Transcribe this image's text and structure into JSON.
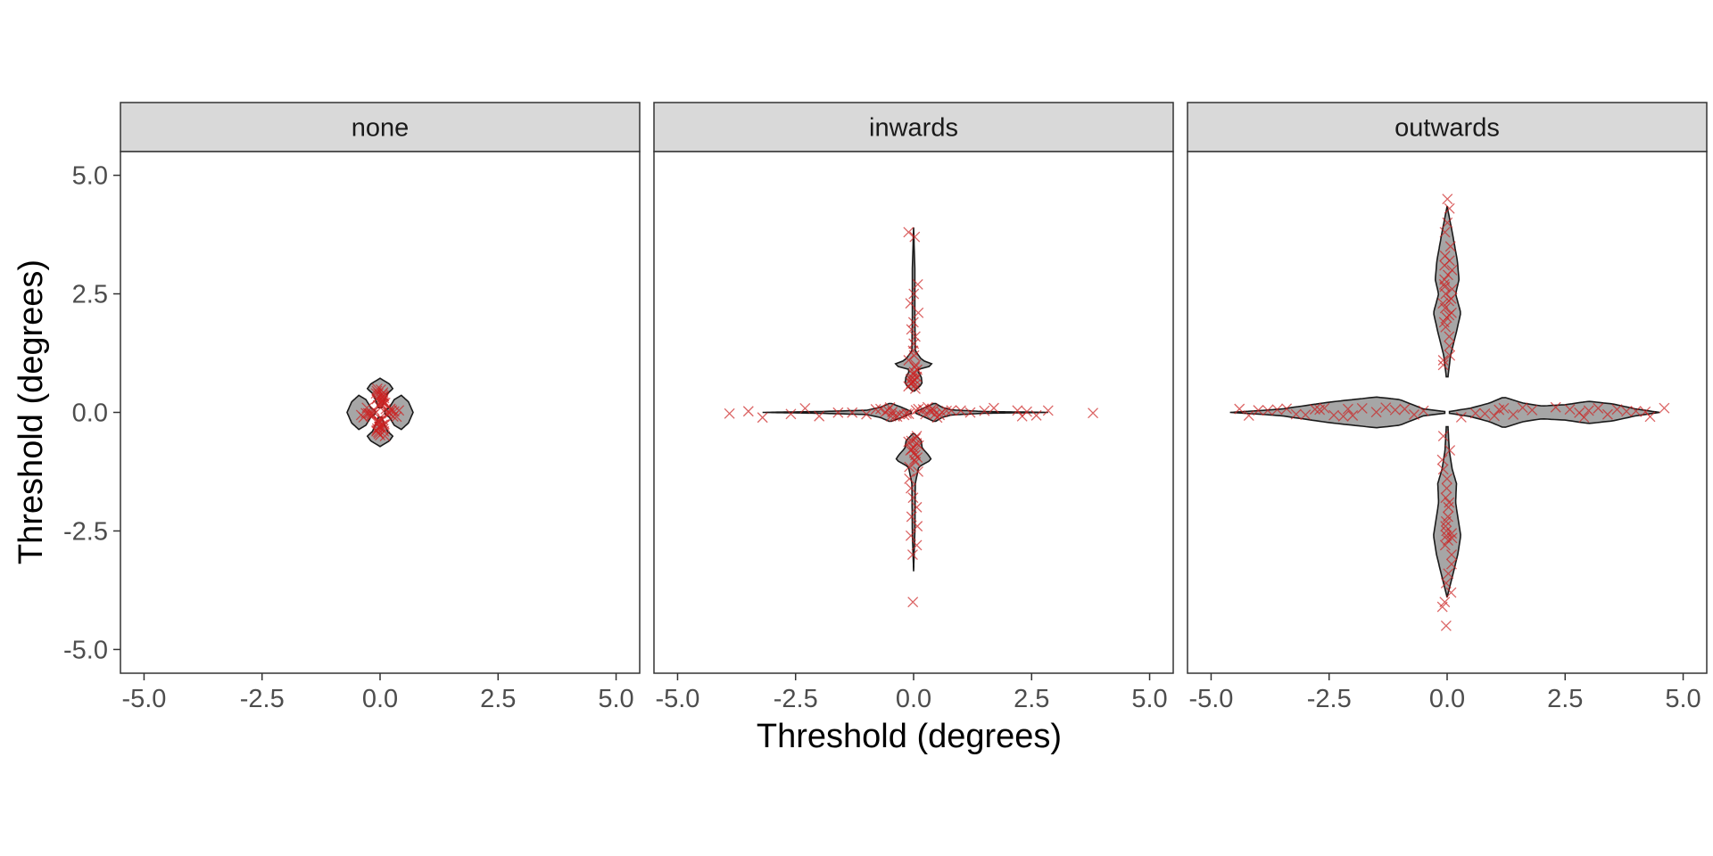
{
  "chart_data": {
    "type": "violin",
    "xlabel": "Threshold (degrees)",
    "ylabel": "Threshold (degrees)",
    "xlim": [
      -5.5,
      5.5
    ],
    "ylim": [
      -5.5,
      5.5
    ],
    "x_ticks": [
      -5.0,
      -2.5,
      0.0,
      2.5,
      5.0
    ],
    "y_ticks": [
      -5.0,
      -2.5,
      0.0,
      2.5,
      5.0
    ],
    "x_tick_labels": [
      "-5.0",
      "-2.5",
      "0.0",
      "2.5",
      "5.0"
    ],
    "y_tick_labels": [
      "-5.0",
      "-2.5",
      "0.0",
      "2.5",
      "5.0"
    ],
    "grid": false,
    "colors": {
      "violin_fill": "#a6a6a6",
      "violin_stroke": "#1a1a1a",
      "point": "#cc2222",
      "strip_fill": "#d9d9d9"
    },
    "panels": [
      {
        "title": "none",
        "violins": {
          "up": {
            "min": 0.1,
            "max": 0.72,
            "profile": [
              [
                0.1,
                0.04
              ],
              [
                0.25,
                0.1
              ],
              [
                0.4,
                0.18
              ],
              [
                0.5,
                0.3
              ],
              [
                0.6,
                0.22
              ],
              [
                0.72,
                0.0
              ]
            ]
          },
          "down": {
            "min": 0.1,
            "max": 0.72,
            "profile": [
              [
                0.1,
                0.04
              ],
              [
                0.25,
                0.1
              ],
              [
                0.4,
                0.18
              ],
              [
                0.5,
                0.3
              ],
              [
                0.6,
                0.22
              ],
              [
                0.72,
                0.0
              ]
            ]
          },
          "right": {
            "min": 0.1,
            "max": 0.7,
            "profile": [
              [
                0.1,
                0.03
              ],
              [
                0.2,
                0.12
              ],
              [
                0.3,
                0.3
              ],
              [
                0.45,
                0.4
              ],
              [
                0.6,
                0.25
              ],
              [
                0.7,
                0.0
              ]
            ]
          },
          "left": {
            "min": 0.1,
            "max": 0.7,
            "profile": [
              [
                0.1,
                0.03
              ],
              [
                0.2,
                0.12
              ],
              [
                0.3,
                0.3
              ],
              [
                0.45,
                0.4
              ],
              [
                0.6,
                0.25
              ],
              [
                0.7,
                0.0
              ]
            ]
          }
        },
        "points": {
          "up": [
            0.12,
            0.15,
            0.18,
            0.2,
            0.22,
            0.25,
            0.28,
            0.3,
            0.32,
            0.35,
            0.38,
            0.4,
            0.42,
            0.45,
            0.48,
            0.5,
            0.3,
            0.26,
            0.34,
            0.2,
            0.4
          ],
          "down": [
            0.12,
            0.15,
            0.18,
            0.2,
            0.22,
            0.25,
            0.28,
            0.3,
            0.32,
            0.35,
            0.38,
            0.4,
            0.42,
            0.45,
            0.48,
            0.5,
            0.3,
            0.26,
            0.34,
            0.2,
            0.4
          ],
          "right": [
            0.12,
            0.15,
            0.18,
            0.22,
            0.25,
            0.28,
            0.3,
            0.35,
            0.4,
            0.2
          ],
          "left": [
            0.12,
            0.15,
            0.18,
            0.22,
            0.25,
            0.28,
            0.3,
            0.35,
            0.4,
            0.2
          ]
        }
      },
      {
        "title": "inwards",
        "violins": {
          "up": {
            "min": 0.45,
            "max": 3.9,
            "profile": [
              [
                0.45,
                0.02
              ],
              [
                0.6,
                0.2
              ],
              [
                0.75,
                0.18
              ],
              [
                0.9,
                0.08
              ],
              [
                1.0,
                0.5
              ],
              [
                1.1,
                0.2
              ],
              [
                1.3,
                0.04
              ],
              [
                2.0,
                0.03
              ],
              [
                3.0,
                0.03
              ],
              [
                3.9,
                0.0
              ]
            ]
          },
          "down": {
            "min": 0.45,
            "max": 3.35,
            "profile": [
              [
                0.45,
                0.02
              ],
              [
                0.6,
                0.18
              ],
              [
                0.75,
                0.2
              ],
              [
                0.9,
                0.35
              ],
              [
                1.0,
                0.42
              ],
              [
                1.15,
                0.12
              ],
              [
                1.5,
                0.04
              ],
              [
                2.5,
                0.03
              ],
              [
                3.35,
                0.0
              ]
            ]
          },
          "right": {
            "min": 0.05,
            "max": 2.85,
            "profile": [
              [
                0.05,
                0.02
              ],
              [
                0.25,
                0.12
              ],
              [
                0.45,
                0.22
              ],
              [
                0.6,
                0.12
              ],
              [
                0.8,
                0.06
              ],
              [
                1.5,
                0.02
              ],
              [
                2.85,
                0.0
              ]
            ]
          },
          "left": {
            "min": 0.05,
            "max": 3.2,
            "profile": [
              [
                0.05,
                0.02
              ],
              [
                0.25,
                0.12
              ],
              [
                0.5,
                0.22
              ],
              [
                0.7,
                0.12
              ],
              [
                1.0,
                0.05
              ],
              [
                2.0,
                0.02
              ],
              [
                3.2,
                0.0
              ]
            ]
          }
        },
        "points": {
          "up": [
            0.5,
            0.55,
            0.6,
            0.62,
            0.65,
            0.7,
            0.75,
            0.8,
            0.85,
            0.9,
            0.95,
            1.0,
            1.1,
            1.2,
            1.3,
            1.45,
            1.6,
            1.75,
            1.9,
            2.1,
            2.3,
            2.5,
            2.7,
            3.7,
            3.8,
            0.58,
            0.68,
            0.72
          ],
          "down": [
            0.5,
            0.55,
            0.6,
            0.65,
            0.7,
            0.75,
            0.8,
            0.85,
            0.9,
            0.95,
            1.0,
            1.05,
            1.15,
            1.25,
            1.4,
            1.6,
            1.8,
            2.0,
            2.2,
            2.4,
            2.6,
            2.8,
            3.0,
            4.0,
            0.62,
            0.78
          ],
          "right": [
            0.05,
            0.1,
            0.2,
            0.3,
            0.35,
            0.4,
            0.45,
            0.5,
            0.55,
            0.6,
            0.7,
            0.8,
            1.0,
            1.2,
            1.5,
            1.7,
            2.2,
            2.3,
            2.4,
            2.6,
            2.85,
            3.8,
            0.25,
            0.42
          ],
          "left": [
            0.1,
            0.15,
            0.2,
            0.3,
            0.4,
            0.45,
            0.5,
            0.55,
            0.6,
            0.7,
            0.8,
            1.0,
            1.3,
            1.6,
            2.0,
            2.3,
            2.6,
            3.2,
            3.5,
            3.9,
            0.35,
            0.48
          ]
        }
      },
      {
        "title": "outwards",
        "violins": {
          "up": {
            "min": 0.75,
            "max": 4.35,
            "profile": [
              [
                0.75,
                0.02
              ],
              [
                1.2,
                0.08
              ],
              [
                1.7,
                0.22
              ],
              [
                2.1,
                0.32
              ],
              [
                2.5,
                0.2
              ],
              [
                2.8,
                0.28
              ],
              [
                3.2,
                0.24
              ],
              [
                3.8,
                0.12
              ],
              [
                4.35,
                0.0
              ]
            ]
          },
          "down": {
            "min": 0.3,
            "max": 3.9,
            "profile": [
              [
                0.3,
                0.02
              ],
              [
                0.8,
                0.05
              ],
              [
                1.2,
                0.12
              ],
              [
                1.5,
                0.22
              ],
              [
                1.9,
                0.2
              ],
              [
                2.2,
                0.25
              ],
              [
                2.6,
                0.32
              ],
              [
                3.0,
                0.25
              ],
              [
                3.4,
                0.14
              ],
              [
                3.9,
                0.0
              ]
            ]
          },
          "right": {
            "min": 0.05,
            "max": 4.5,
            "profile": [
              [
                0.05,
                0.02
              ],
              [
                0.5,
                0.1
              ],
              [
                0.9,
                0.22
              ],
              [
                1.2,
                0.36
              ],
              [
                1.6,
                0.22
              ],
              [
                2.0,
                0.15
              ],
              [
                2.5,
                0.18
              ],
              [
                3.0,
                0.26
              ],
              [
                3.5,
                0.2
              ],
              [
                4.0,
                0.08
              ],
              [
                4.5,
                0.0
              ]
            ]
          },
          "left": {
            "min": 0.05,
            "max": 4.6,
            "profile": [
              [
                0.05,
                0.02
              ],
              [
                0.5,
                0.08
              ],
              [
                1.0,
                0.3
              ],
              [
                1.5,
                0.36
              ],
              [
                2.0,
                0.3
              ],
              [
                2.5,
                0.24
              ],
              [
                3.0,
                0.16
              ],
              [
                3.5,
                0.08
              ],
              [
                4.0,
                0.04
              ],
              [
                4.6,
                0.0
              ]
            ]
          }
        },
        "points": {
          "up": [
            1.0,
            1.1,
            1.2,
            1.4,
            1.6,
            1.8,
            1.9,
            2.0,
            2.1,
            2.2,
            2.3,
            2.4,
            2.5,
            2.6,
            2.7,
            2.8,
            2.9,
            3.0,
            3.1,
            3.2,
            3.3,
            3.5,
            3.8,
            4.0,
            4.3,
            4.5,
            2.05,
            2.35,
            2.65
          ],
          "down": [
            0.5,
            0.8,
            1.0,
            1.2,
            1.4,
            1.6,
            1.8,
            1.9,
            2.0,
            2.2,
            2.4,
            2.5,
            2.6,
            2.7,
            2.8,
            3.0,
            3.2,
            3.4,
            3.6,
            3.8,
            4.0,
            4.1,
            4.5,
            2.3,
            2.55,
            2.65
          ],
          "right": [
            0.3,
            0.6,
            0.8,
            1.0,
            1.2,
            1.4,
            1.6,
            1.8,
            2.3,
            2.6,
            2.8,
            3.0,
            3.2,
            3.4,
            3.6,
            3.8,
            4.0,
            4.2,
            4.3,
            4.6,
            1.1,
            2.9
          ],
          "left": [
            0.5,
            0.7,
            0.9,
            1.1,
            1.3,
            1.5,
            1.8,
            2.0,
            2.2,
            2.4,
            2.6,
            2.8,
            3.0,
            3.2,
            3.4,
            3.6,
            3.8,
            4.0,
            4.2,
            4.4,
            2.1,
            2.7
          ]
        }
      }
    ]
  }
}
